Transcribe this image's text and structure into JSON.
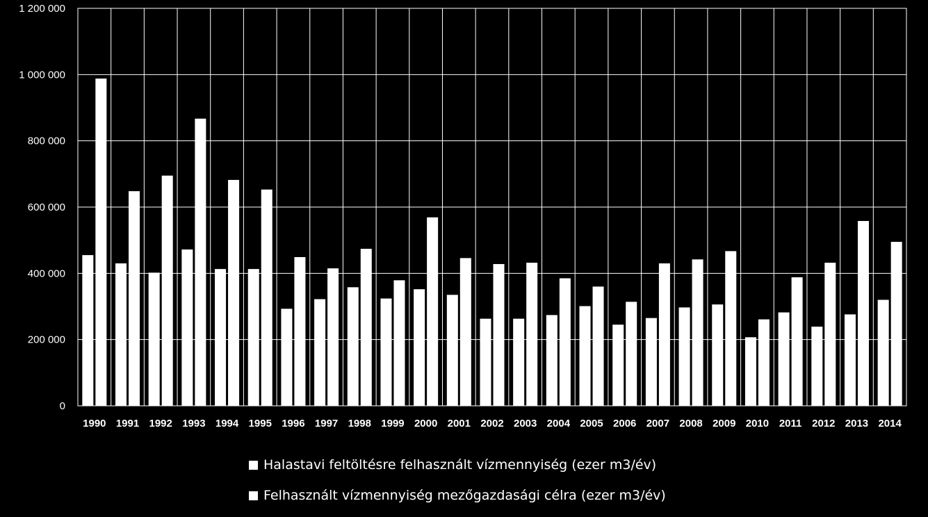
{
  "chart_data": {
    "type": "bar",
    "title": "",
    "xlabel": "",
    "ylabel": "",
    "ylim": [
      0,
      1200000
    ],
    "yticks": [
      0,
      200000,
      400000,
      600000,
      800000,
      1000000,
      1200000
    ],
    "ytick_labels": [
      "0",
      "200 000",
      "400 000",
      "600 000",
      "800 000",
      "1 000 000",
      "1 200 000"
    ],
    "grid": true,
    "legend_position": "bottom",
    "categories": [
      "1990",
      "1991",
      "1992",
      "1993",
      "1994",
      "1995",
      "1996",
      "1997",
      "1998",
      "1999",
      "2000",
      "2001",
      "2002",
      "2003",
      "2004",
      "2005",
      "2006",
      "2007",
      "2008",
      "2009",
      "2010",
      "2011",
      "2012",
      "2013",
      "2014"
    ],
    "series": [
      {
        "name": "Halastavi feltöltésre felhasznált vízmennyiség  (ezer m3/év)",
        "color": "#ffffff",
        "values": [
          455000,
          430000,
          402000,
          472000,
          413000,
          413000,
          293000,
          322000,
          358000,
          324000,
          352000,
          335000,
          263000,
          263000,
          274000,
          301000,
          245000,
          265000,
          297000,
          306000,
          207000,
          282000,
          239000,
          276000,
          320000
        ]
      },
      {
        "name": "Felhasznált vízmennyiség mezőgazdasági célra (ezer m3/év)",
        "color": "#ffffff",
        "values": [
          988000,
          648000,
          695000,
          867000,
          682000,
          653000,
          449000,
          415000,
          474000,
          379000,
          569000,
          446000,
          428000,
          432000,
          385000,
          360000,
          314000,
          430000,
          442000,
          467000,
          261000,
          388000,
          432000,
          558000,
          495000
        ]
      }
    ]
  },
  "colors": {
    "background": "#000000",
    "bars": "#ffffff",
    "grid": "#ffffff",
    "text": "#ffffff"
  }
}
